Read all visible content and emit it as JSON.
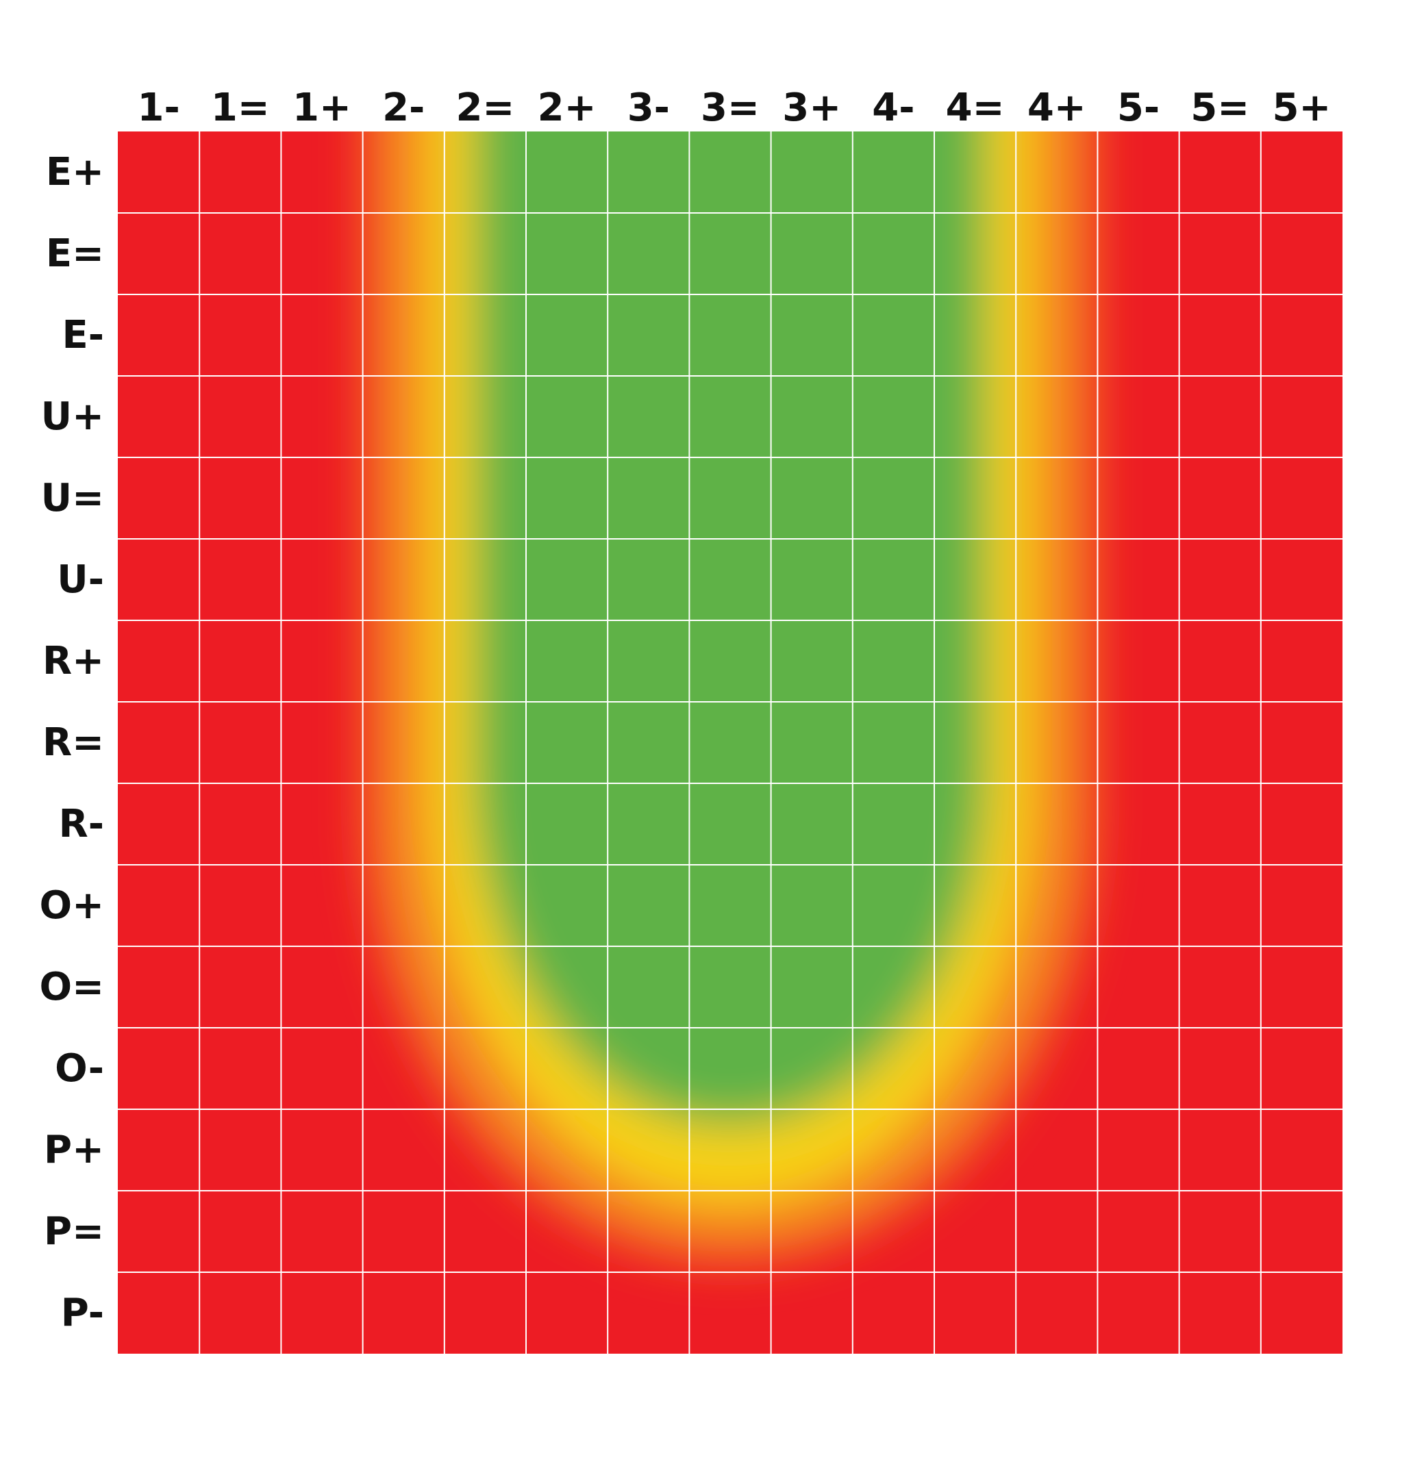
{
  "chart_data": {
    "type": "heatmap",
    "title": "",
    "xlabel": "",
    "ylabel": "",
    "x_categories": [
      "1-",
      "1=",
      "1+",
      "2-",
      "2=",
      "2+",
      "3-",
      "3=",
      "3+",
      "4-",
      "4=",
      "4+",
      "5-",
      "5=",
      "5+"
    ],
    "y_categories": [
      "E+",
      "E=",
      "E-",
      "U+",
      "U=",
      "U-",
      "R+",
      "R=",
      "R-",
      "O+",
      "O=",
      "O-",
      "P+",
      "P=",
      "P-"
    ],
    "grid": true,
    "colors": {
      "red": "#ed1c24",
      "orange": "#f58220",
      "yellow": "#f7d117",
      "green": "#5fb246",
      "grid": "#ffffff"
    },
    "zones": [
      "red",
      "orange",
      "yellow",
      "green"
    ]
  }
}
